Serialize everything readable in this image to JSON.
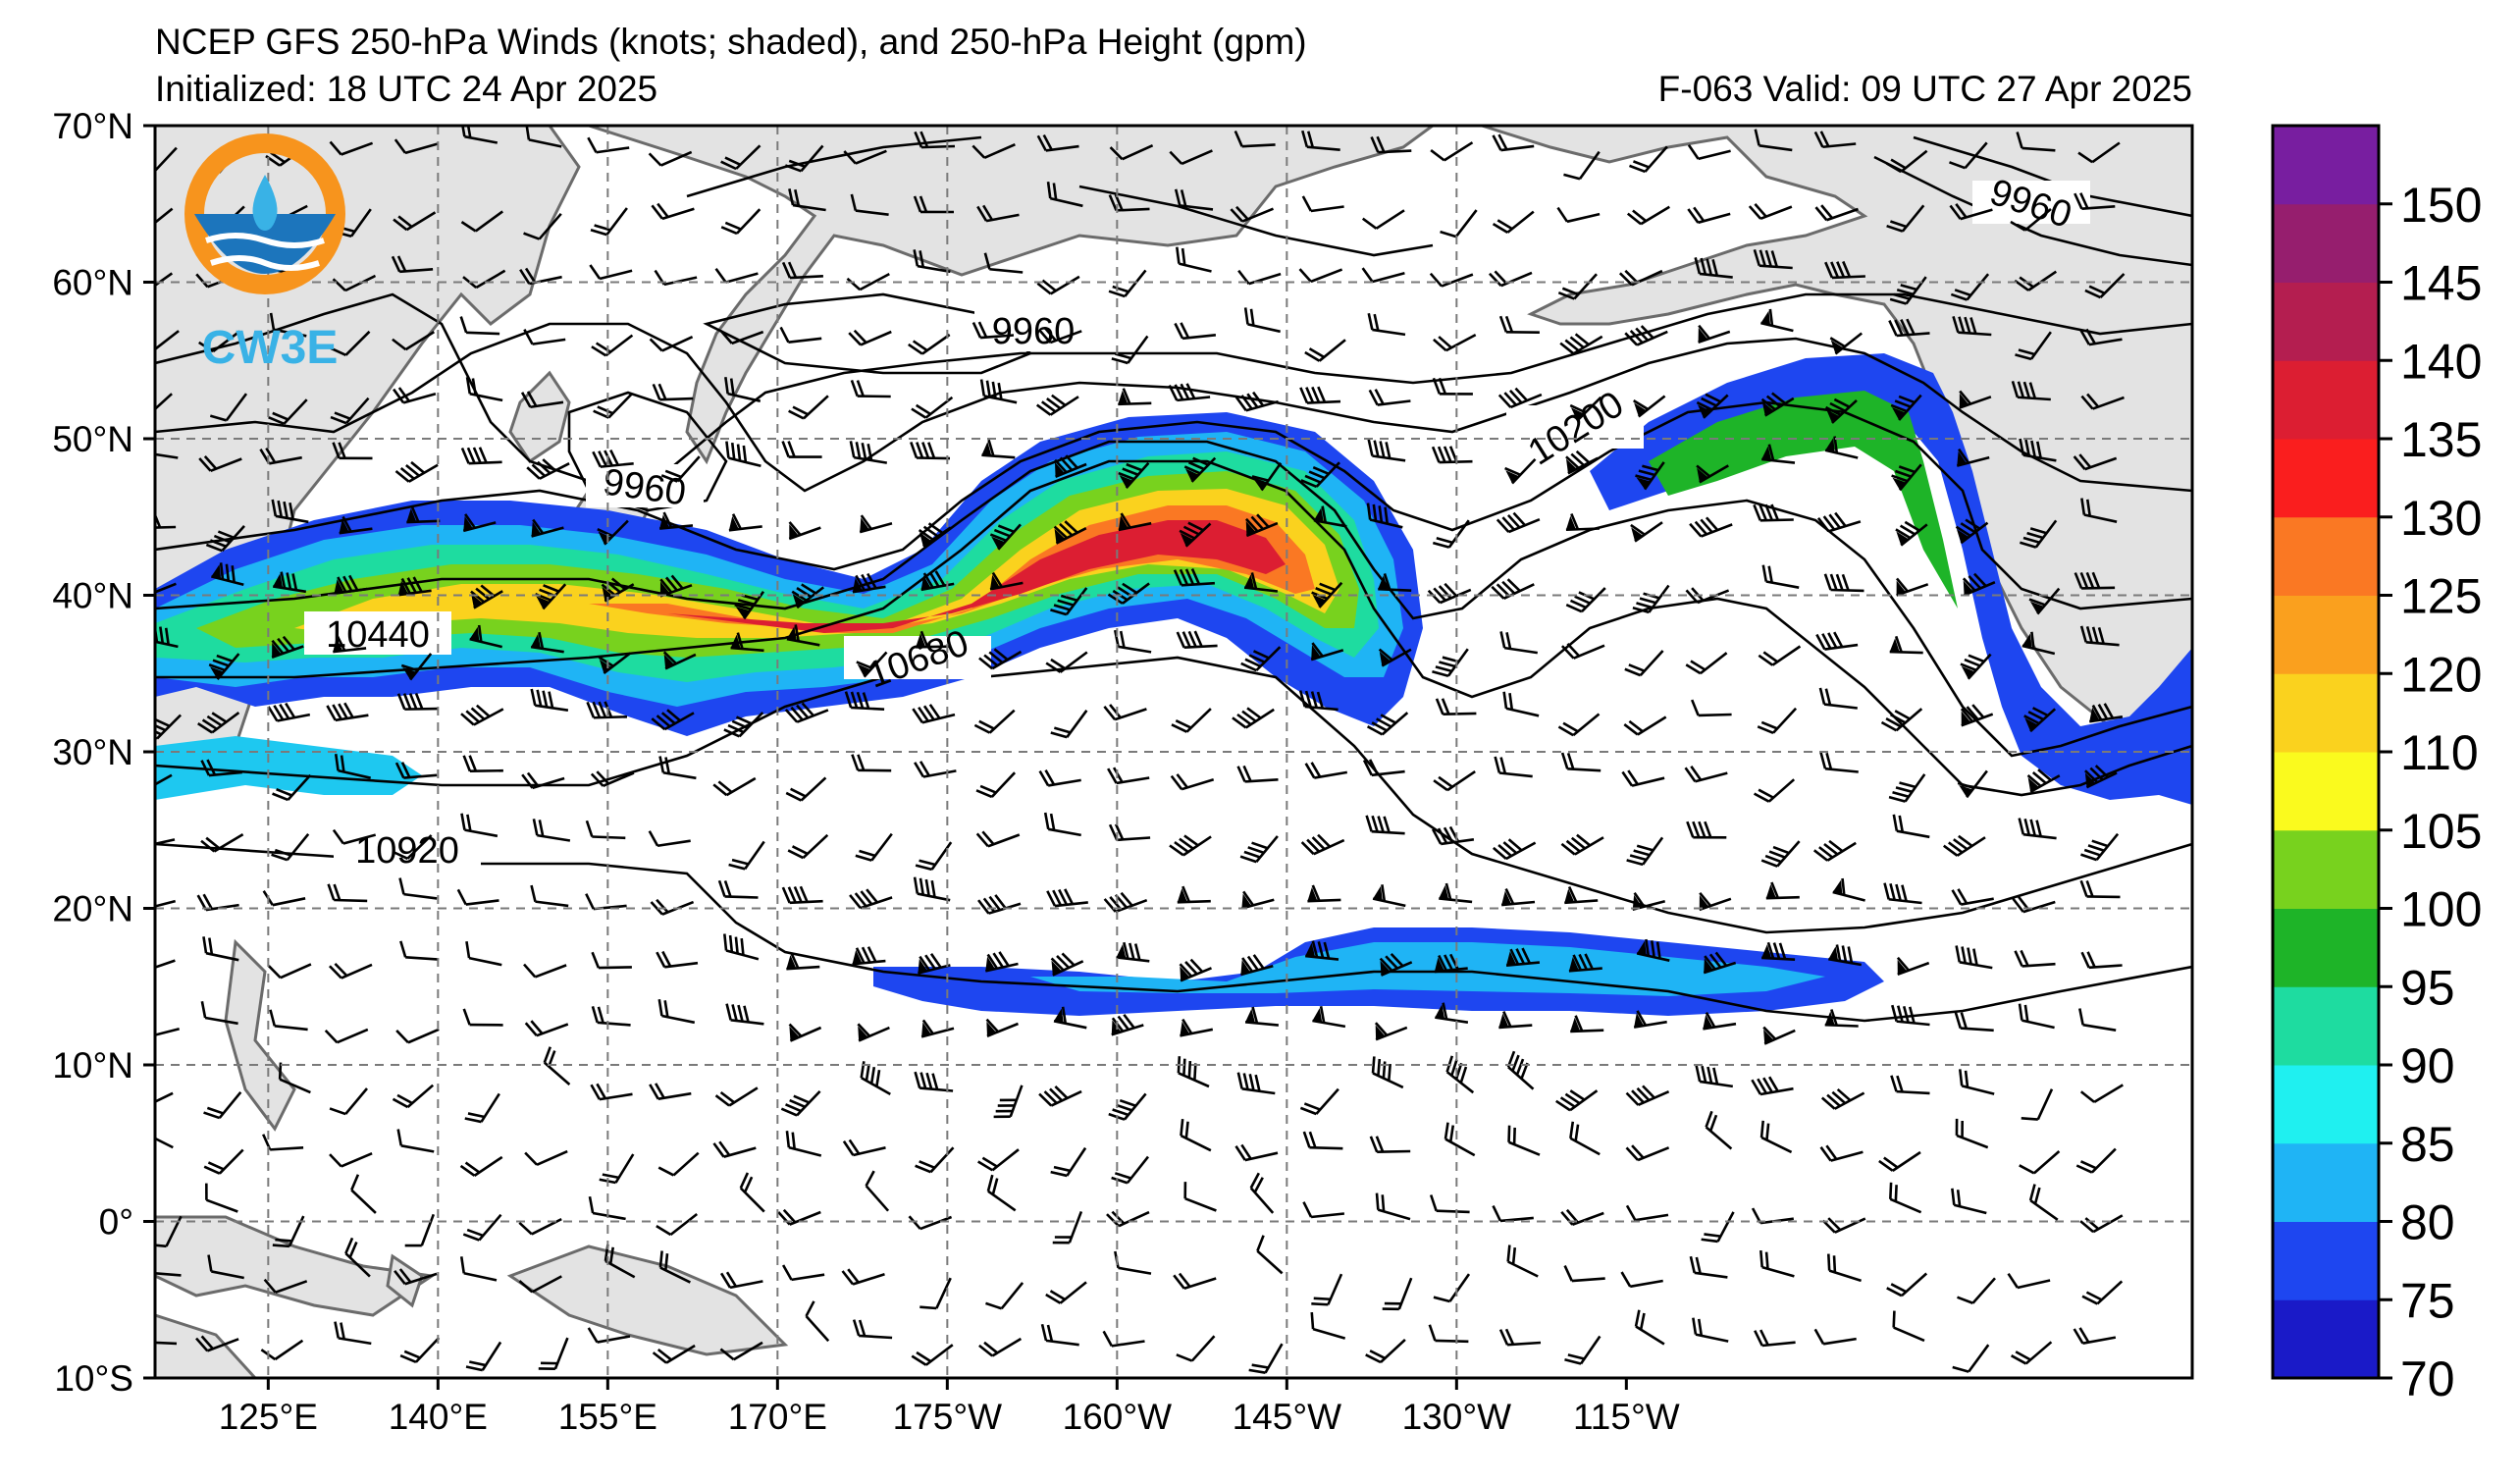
{
  "title": {
    "line1": "NCEP GFS 250-hPa Winds (knots; shaded), and 250-hPa Height (gpm)",
    "init": "Initialized: 18 UTC 24 Apr 2025",
    "valid": "F-063  Valid: 09 UTC 27 Apr 2025"
  },
  "logo": {
    "text": "CW3E",
    "colors": {
      "orange": "#F7941D",
      "blue": "#1C75BC",
      "light_blue": "#39B2E6"
    }
  },
  "axes": {
    "lon_labels": [
      "125°E",
      "140°E",
      "155°E",
      "170°E",
      "175°W",
      "160°W",
      "145°W",
      "130°W",
      "115°W"
    ],
    "lat_labels": [
      "70°N",
      "60°N",
      "50°N",
      "40°N",
      "30°N",
      "20°N",
      "10°N",
      "0°",
      "10°S"
    ],
    "lon_range": [
      "115°E",
      "115°W"
    ],
    "lat_range": [
      "10°S",
      "70°N"
    ],
    "grid": "dashed"
  },
  "colorbar": {
    "ticks": [
      "70",
      "75",
      "80",
      "85",
      "90",
      "95",
      "100",
      "105",
      "110",
      "120",
      "125",
      "130",
      "135",
      "140",
      "145",
      "150"
    ],
    "colors": [
      "#1a1ac8",
      "#1e46f0",
      "#1fb4f5",
      "#1ff0f0",
      "#1edca0",
      "#1eb428",
      "#78d21e",
      "#fafa1e",
      "#fad21e",
      "#faa01e",
      "#fa7823",
      "#fa1e1e",
      "#dc1e32",
      "#b41e50",
      "#961e6e",
      "#781ea0"
    ],
    "units": "knots"
  },
  "contour_labels": [
    "9960",
    "9960",
    "9960",
    "10200",
    "10440",
    "10680",
    "10920"
  ]
}
